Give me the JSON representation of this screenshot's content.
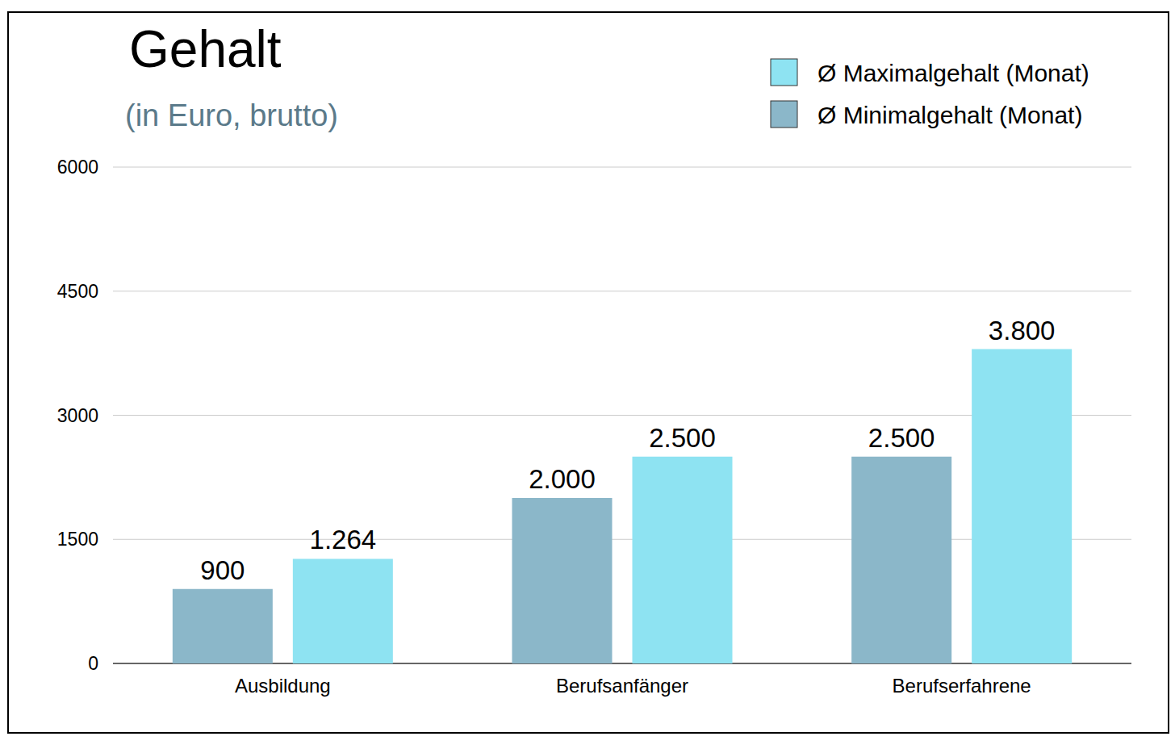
{
  "chart_data": {
    "type": "bar",
    "title": "Gehalt",
    "subtitle": "(in Euro, brutto)",
    "categories": [
      "Ausbildung",
      "Berufsanfänger",
      "Berufserfahrene"
    ],
    "series": [
      {
        "name": "Ø Minimalgehalt (Monat)",
        "color": "#8bb7c9",
        "values": [
          900,
          2000,
          2500
        ],
        "value_labels": [
          "900",
          "2.000",
          "2.500"
        ]
      },
      {
        "name": "Ø Maximalgehalt (Monat)",
        "color": "#8ee3f2",
        "values": [
          1264,
          2500,
          3800
        ],
        "value_labels": [
          "1.264",
          "2.500",
          "3.800"
        ]
      }
    ],
    "ylim": [
      0,
      6000
    ],
    "yticks": [
      0,
      1500,
      3000,
      4500,
      6000
    ],
    "grid": true,
    "legend": "top-right",
    "data_labels": true
  }
}
